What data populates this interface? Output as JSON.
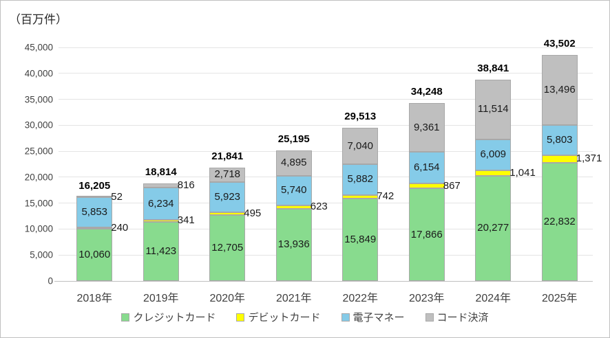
{
  "chart_data": {
    "type": "bar",
    "stacked": true,
    "unit_label": "（百万件）",
    "categories": [
      "2018年",
      "2019年",
      "2020年",
      "2021年",
      "2022年",
      "2023年",
      "2024年",
      "2025年"
    ],
    "series": [
      {
        "name": "クレジットカード",
        "slug": "credit-card",
        "color": "#88DB8E",
        "values": [
          10060,
          11423,
          12705,
          13936,
          15849,
          17866,
          20277,
          22832
        ]
      },
      {
        "name": "デビットカード",
        "slug": "debit-card",
        "color": "#FFFF00",
        "values": [
          240,
          341,
          495,
          623,
          742,
          867,
          1041,
          1371
        ]
      },
      {
        "name": "電子マネー",
        "slug": "e-money",
        "color": "#85CBE8",
        "values": [
          5853,
          6234,
          5923,
          5740,
          5882,
          6154,
          6009,
          5803
        ]
      },
      {
        "name": "コード決済",
        "slug": "code-payment",
        "color": "#BFBFBF",
        "values": [
          52,
          816,
          2718,
          4895,
          7040,
          9361,
          11514,
          13496
        ]
      }
    ],
    "totals": [
      16205,
      18814,
      21841,
      25195,
      29513,
      34248,
      38841,
      43502
    ],
    "total_labels": [
      "16,205",
      "18,814",
      "21,841",
      "25,195",
      "29,513",
      "34,248",
      "38,841",
      "43,502"
    ],
    "ylim": [
      0,
      45000
    ],
    "ytick_step": 5000,
    "ytick_labels": [
      "0",
      "5,000",
      "10,000",
      "15,000",
      "20,000",
      "25,000",
      "30,000",
      "35,000",
      "40,000",
      "45,000"
    ],
    "grid": "horizontal",
    "legend_position": "bottom"
  }
}
